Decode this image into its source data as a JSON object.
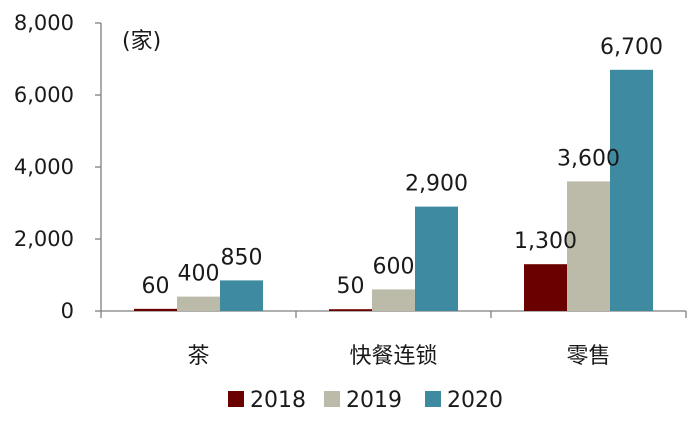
{
  "chart_data": {
    "type": "bar",
    "unit_label": "(家)",
    "categories": [
      "茶",
      "快餐连锁",
      "零售"
    ],
    "series": [
      {
        "name": "2018",
        "color": "#6b0000",
        "values": [
          60,
          50,
          1300
        ],
        "labels": [
          "60",
          "50",
          "1,300"
        ]
      },
      {
        "name": "2019",
        "color": "#bcbaa8",
        "values": [
          400,
          600,
          3600
        ],
        "labels": [
          "400",
          "600",
          "3,600"
        ]
      },
      {
        "name": "2020",
        "color": "#3e8aa0",
        "values": [
          850,
          2900,
          6700
        ],
        "labels": [
          "850",
          "2,900",
          "6,700"
        ]
      }
    ],
    "ylim": [
      0,
      8000
    ],
    "yticks": [
      0,
      2000,
      4000,
      6000,
      8000
    ],
    "ytick_labels": [
      "0",
      "2,000",
      "4,000",
      "6,000",
      "8,000"
    ],
    "grid": false,
    "legend_position": "bottom"
  }
}
